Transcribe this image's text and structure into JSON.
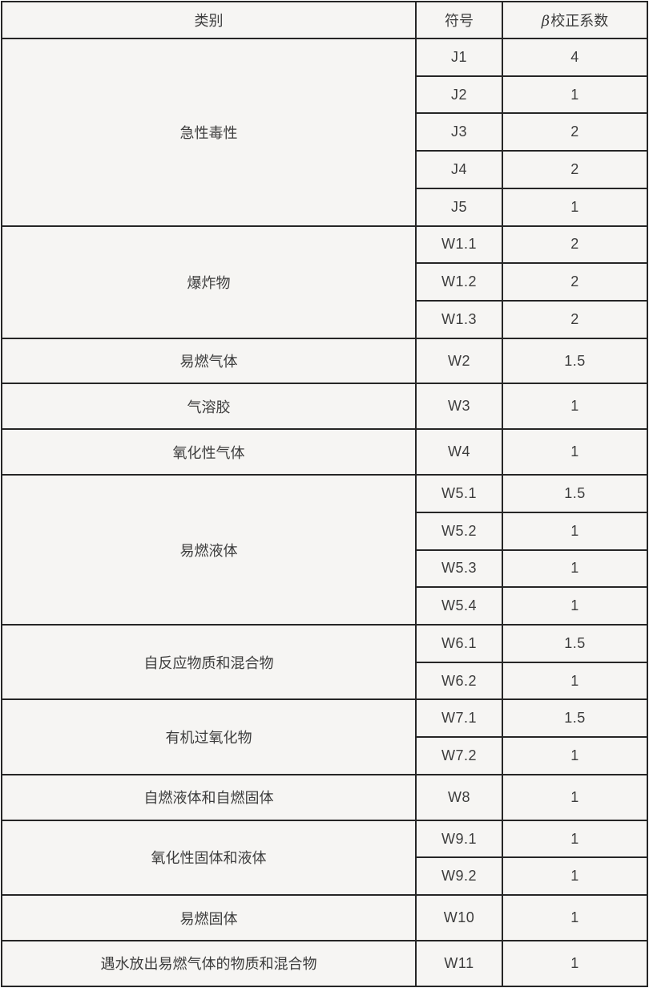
{
  "table": {
    "headers": {
      "category": "类别",
      "symbol": "符号",
      "beta_symbol": "β",
      "beta_label": "校正系数"
    },
    "groups": [
      {
        "category": "急性毒性",
        "rows": [
          {
            "symbol": "J1",
            "value": "4"
          },
          {
            "symbol": "J2",
            "value": "1"
          },
          {
            "symbol": "J3",
            "value": "2"
          },
          {
            "symbol": "J4",
            "value": "2"
          },
          {
            "symbol": "J5",
            "value": "1"
          }
        ]
      },
      {
        "category": "爆炸物",
        "rows": [
          {
            "symbol": "W1.1",
            "value": "2"
          },
          {
            "symbol": "W1.2",
            "value": "2"
          },
          {
            "symbol": "W1.3",
            "value": "2"
          }
        ]
      },
      {
        "category": "易燃气体",
        "rows": [
          {
            "symbol": "W2",
            "value": "1.5"
          }
        ]
      },
      {
        "category": "气溶胶",
        "rows": [
          {
            "symbol": "W3",
            "value": "1"
          }
        ]
      },
      {
        "category": "氧化性气体",
        "rows": [
          {
            "symbol": "W4",
            "value": "1"
          }
        ]
      },
      {
        "category": "易燃液体",
        "rows": [
          {
            "symbol": "W5.1",
            "value": "1.5"
          },
          {
            "symbol": "W5.2",
            "value": "1"
          },
          {
            "symbol": "W5.3",
            "value": "1"
          },
          {
            "symbol": "W5.4",
            "value": "1"
          }
        ]
      },
      {
        "category": "自反应物质和混合物",
        "rows": [
          {
            "symbol": "W6.1",
            "value": "1.5"
          },
          {
            "symbol": "W6.2",
            "value": "1"
          }
        ]
      },
      {
        "category": "有机过氧化物",
        "rows": [
          {
            "symbol": "W7.1",
            "value": "1.5"
          },
          {
            "symbol": "W7.2",
            "value": "1"
          }
        ]
      },
      {
        "category": "自燃液体和自燃固体",
        "rows": [
          {
            "symbol": "W8",
            "value": "1"
          }
        ]
      },
      {
        "category": "氧化性固体和液体",
        "rows": [
          {
            "symbol": "W9.1",
            "value": "1"
          },
          {
            "symbol": "W9.2",
            "value": "1"
          }
        ]
      },
      {
        "category": "易燃固体",
        "rows": [
          {
            "symbol": "W10",
            "value": "1"
          }
        ]
      },
      {
        "category": "遇水放出易燃气体的物质和混合物",
        "rows": [
          {
            "symbol": "W11",
            "value": "1"
          }
        ]
      }
    ]
  },
  "colors": {
    "background": "#f6f5f3",
    "border": "#262626",
    "text": "#3d3d3d"
  }
}
